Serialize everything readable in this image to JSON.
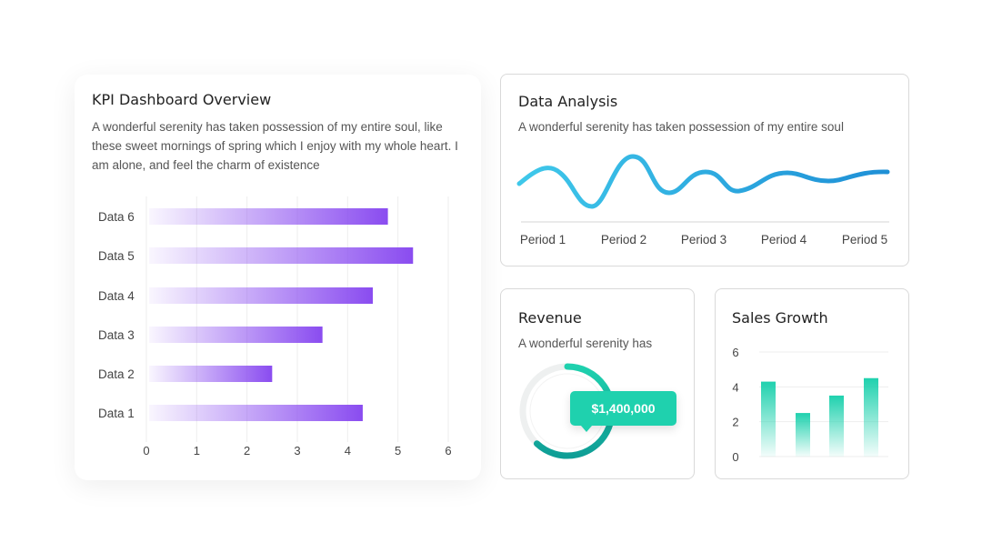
{
  "kpi": {
    "title": "KPI Dashboard Overview",
    "text": "A wonderful serenity has taken possession of my entire soul, like these sweet mornings of spring which I enjoy with my whole heart. I am alone, and feel the charm of existence"
  },
  "analysis": {
    "title": "Data Analysis",
    "text": "A wonderful serenity has taken possession of my entire soul"
  },
  "revenue": {
    "title": "Revenue",
    "text": "A wonderful serenity has",
    "value": "$1,400,000",
    "progress": 0.62
  },
  "sales": {
    "title": "Sales Growth"
  },
  "colors": {
    "purple": "#8a4cf0",
    "teal": "#1fd1ae",
    "blue": "#1e90d6"
  },
  "chart_data": [
    {
      "type": "bar",
      "orientation": "horizontal",
      "categories": [
        "Data 1",
        "Data 2",
        "Data 3",
        "Data 4",
        "Data 5",
        "Data 6"
      ],
      "values": [
        4.3,
        2.5,
        3.5,
        4.5,
        5.3,
        4.8
      ],
      "xlim": [
        0,
        6
      ],
      "xticks": [
        "0",
        "1",
        "2",
        "3",
        "4",
        "5",
        "6"
      ],
      "grid": true
    },
    {
      "type": "line",
      "x": [
        "Period 1",
        "Period 2",
        "Period 3",
        "Period 4",
        "Period 5"
      ],
      "grid": false
    },
    {
      "type": "bar",
      "categories": [
        "",
        "",
        "",
        ""
      ],
      "values": [
        4.3,
        2.5,
        3.5,
        4.5
      ],
      "ylim": [
        0,
        6
      ],
      "yticks": [
        "0",
        "2",
        "4",
        "6"
      ],
      "grid": true
    }
  ]
}
